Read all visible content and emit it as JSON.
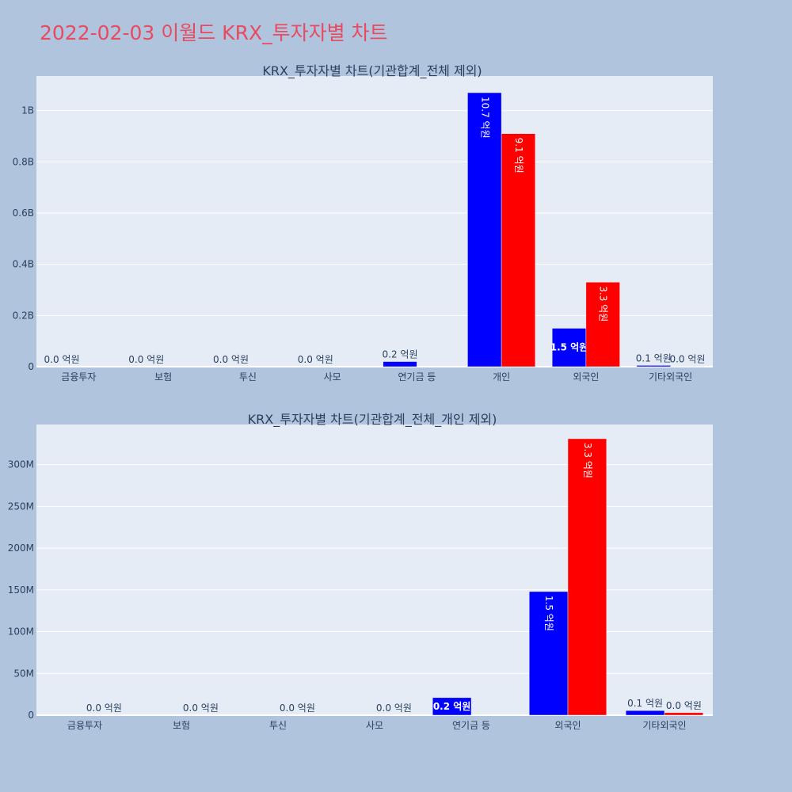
{
  "page": {
    "title": "2022-02-03 이월드 KRX_투자자별 차트"
  },
  "chart_data": [
    {
      "type": "bar",
      "title": "KRX_투자자별 차트(기관합계_전체 제외)",
      "categories": [
        "금융투자",
        "보험",
        "투신",
        "사모",
        "연기금 등",
        "개인",
        "외국인",
        "기타외국인"
      ],
      "series": [
        {
          "color": "#0000ff",
          "values": [
            0,
            0,
            0,
            0,
            20000000,
            1070000000,
            150000000,
            5000000
          ],
          "labels": [
            "0.0 억원",
            "0.0 억원",
            "0.0 억원",
            "0.0 억원",
            "0.2 억원",
            "10.7 억원",
            "1.5 억원",
            "0.1 억원"
          ]
        },
        {
          "color": "#ff0000",
          "values": [
            0,
            0,
            0,
            0,
            0,
            910000000,
            330000000,
            1000000
          ],
          "labels": [
            "",
            "",
            "",
            "",
            "",
            "9.1 억원",
            "3.3 억원",
            "0.0 억원"
          ]
        }
      ],
      "yticks": [
        "0",
        "0.2B",
        "0.4B",
        "0.6B",
        "0.8B",
        "1B"
      ],
      "ytick_values": [
        0,
        200000000,
        400000000,
        600000000,
        800000000,
        1000000000
      ],
      "ylim": [
        0,
        1135000000
      ],
      "grid": true
    },
    {
      "type": "bar",
      "title": "KRX_투자자별 차트(기관합계_전체_개인 제외)",
      "categories": [
        "금융투자",
        "보험",
        "투신",
        "사모",
        "연기금 등",
        "외국인",
        "기타외국인"
      ],
      "series": [
        {
          "color": "#0000ff",
          "values": [
            0,
            0,
            0,
            0,
            21000000,
            148000000,
            5500000
          ],
          "labels": [
            "",
            "",
            "",
            "",
            "0.2 억원",
            "1.5 억원",
            "0.1 억원"
          ]
        },
        {
          "color": "#ff0000",
          "values": [
            0,
            0,
            0,
            0,
            0,
            331000000,
            3000000
          ],
          "labels": [
            "0.0 억원",
            "0.0 억원",
            "0.0 억원",
            "0.0 억원",
            "",
            "3.3 억원",
            "0.0 억원"
          ]
        }
      ],
      "yticks": [
        "0",
        "50M",
        "100M",
        "150M",
        "200M",
        "250M",
        "300M"
      ],
      "ytick_values": [
        0,
        50000000,
        100000000,
        150000000,
        200000000,
        250000000,
        300000000
      ],
      "ylim": [
        0,
        348000000
      ],
      "grid": true
    }
  ]
}
